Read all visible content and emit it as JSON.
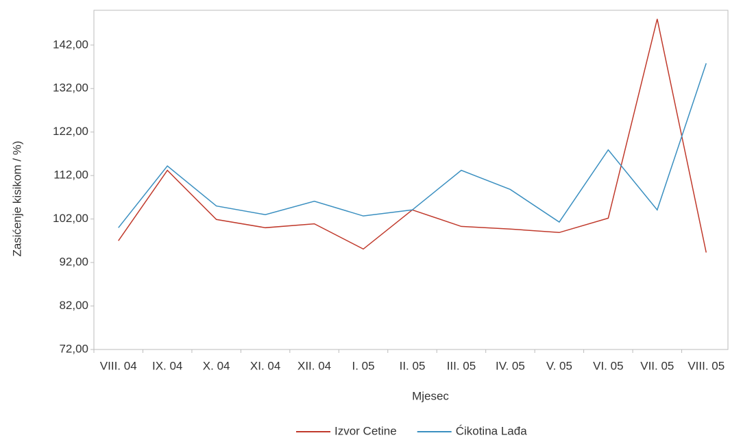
{
  "chart_data": {
    "type": "line",
    "x_label": "Mjesec",
    "y_label": "Zasićenje kisikom / %)",
    "categories": [
      "VIII. 04",
      "IX. 04",
      "X. 04",
      "XI. 04",
      "XII. 04",
      "I. 05",
      "II. 05",
      "III. 05",
      "IV. 05",
      "V. 05",
      "VI. 05",
      "VII. 05",
      "VIII. 05"
    ],
    "series": [
      {
        "name": "Izvor Cetine",
        "color": "#c0392b",
        "values": [
          97.0,
          113.2,
          101.9,
          100.0,
          100.9,
          95.1,
          104.1,
          100.3,
          99.7,
          98.9,
          102.2,
          148.0,
          94.3
        ]
      },
      {
        "name": "Ćikotina Lađa",
        "color": "#3a8fc0",
        "values": [
          100.0,
          114.2,
          105.0,
          103.0,
          106.1,
          102.7,
          104.1,
          113.2,
          108.8,
          101.3,
          117.9,
          104.1,
          137.8
        ]
      }
    ],
    "ylim": [
      72,
      150
    ],
    "yticks": [
      {
        "value": 72,
        "label": "72,00"
      },
      {
        "value": 82,
        "label": "82,00"
      },
      {
        "value": 92,
        "label": "92,00"
      },
      {
        "value": 102,
        "label": "102,00"
      },
      {
        "value": 112,
        "label": "112,00"
      },
      {
        "value": 122,
        "label": "122,00"
      },
      {
        "value": 132,
        "label": "132,00"
      },
      {
        "value": 142,
        "label": "142,00"
      }
    ],
    "legend": "bottom"
  }
}
